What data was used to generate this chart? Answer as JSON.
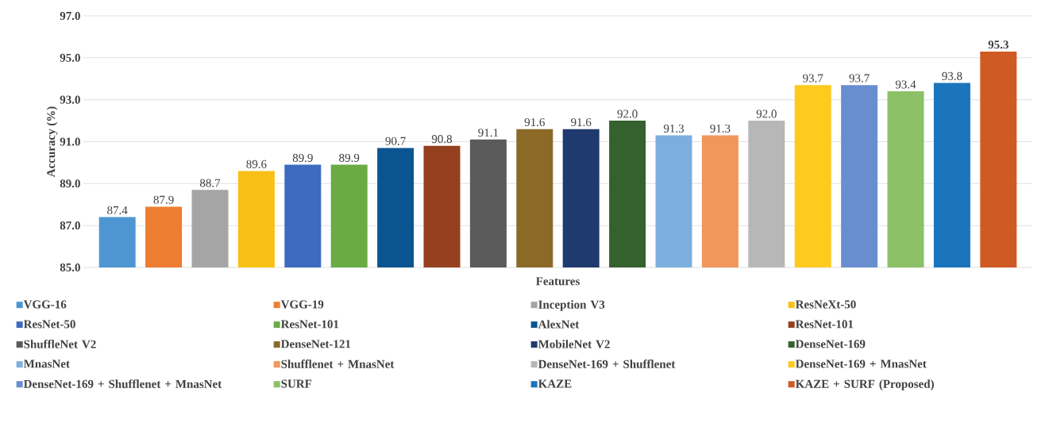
{
  "chart_data": {
    "type": "bar",
    "xlabel": "Features",
    "ylabel": "Accuracy (%)",
    "categories": [
      null
    ],
    "ylim": [
      85,
      97
    ],
    "yticks": [
      {
        "value": 85,
        "label": "85.0"
      },
      {
        "value": 87,
        "label": "87.0"
      },
      {
        "value": 89,
        "label": "89.0"
      },
      {
        "value": 91,
        "label": "91.0"
      },
      {
        "value": 93,
        "label": "93.0"
      },
      {
        "value": 95,
        "label": "95.0"
      },
      {
        "value": 97,
        "label": "97.0"
      }
    ],
    "grid": "y",
    "legend": "bottom",
    "series": [
      {
        "name": "VGG-16",
        "color": "#4e96d2",
        "values": [
          87.4
        ],
        "value_labels": [
          "87.4"
        ]
      },
      {
        "name": "VGG-19",
        "color": "#ed7d31",
        "values": [
          87.9
        ],
        "value_labels": [
          "87.9"
        ]
      },
      {
        "name": "Inception V3",
        "color": "#a5a5a5",
        "values": [
          88.7
        ],
        "value_labels": [
          "88.7"
        ]
      },
      {
        "name": "ResNeXt-50",
        "color": "#f9c015",
        "values": [
          89.6
        ],
        "value_labels": [
          "89.6"
        ]
      },
      {
        "name": "ResNet-50",
        "color": "#3c6bbf",
        "values": [
          89.9
        ],
        "value_labels": [
          "89.9"
        ]
      },
      {
        "name": "ResNet-101",
        "color": "#6aab45",
        "values": [
          89.9
        ],
        "value_labels": [
          "89.9"
        ]
      },
      {
        "name": "AlexNet",
        "color": "#0a5591",
        "values": [
          90.7
        ],
        "value_labels": [
          "90.7"
        ]
      },
      {
        "name": "ResNet-101",
        "color": "#95401f",
        "values": [
          90.8
        ],
        "value_labels": [
          "90.8"
        ]
      },
      {
        "name": "ShuffleNet V2",
        "color": "#5a5a5a",
        "values": [
          91.1
        ],
        "value_labels": [
          "91.1"
        ]
      },
      {
        "name": "DenseNet-121",
        "color": "#8b6a28",
        "values": [
          91.6
        ],
        "value_labels": [
          "91.6"
        ]
      },
      {
        "name": "MobileNet V2",
        "color": "#1f3a6e",
        "values": [
          91.6
        ],
        "value_labels": [
          "91.6"
        ]
      },
      {
        "name": "DenseNet-169",
        "color": "#35612f",
        "values": [
          92.0
        ],
        "value_labels": [
          "92.0"
        ]
      },
      {
        "name": "MnasNet",
        "color": "#7cafdd",
        "values": [
          91.3
        ],
        "value_labels": [
          "91.3"
        ]
      },
      {
        "name": "Shufflenet + MnasNet",
        "color": "#f1975a",
        "values": [
          91.3
        ],
        "value_labels": [
          "91.3"
        ]
      },
      {
        "name": "DenseNet-169 + Shufflenet",
        "color": "#b7b7b7",
        "values": [
          92.0
        ],
        "value_labels": [
          "92.0"
        ]
      },
      {
        "name": "DenseNet-169 + MnasNet",
        "color": "#fdca1e",
        "values": [
          93.7
        ],
        "value_labels": [
          "93.7"
        ]
      },
      {
        "name": "DenseNet-169 + Shufflenet + MnasNet",
        "color": "#698ed0",
        "values": [
          93.7
        ],
        "value_labels": [
          "93.7"
        ]
      },
      {
        "name": "SURF",
        "color": "#8cc168",
        "values": [
          93.4
        ],
        "value_labels": [
          "93.4"
        ]
      },
      {
        "name": "KAZE",
        "color": "#1b75bc",
        "values": [
          93.8
        ],
        "value_labels": [
          "93.8"
        ]
      },
      {
        "name": "KAZE + SURF (Proposed)",
        "color": "#d05a24",
        "values": [
          95.3
        ],
        "value_labels": [
          "**95.3**"
        ]
      }
    ]
  }
}
